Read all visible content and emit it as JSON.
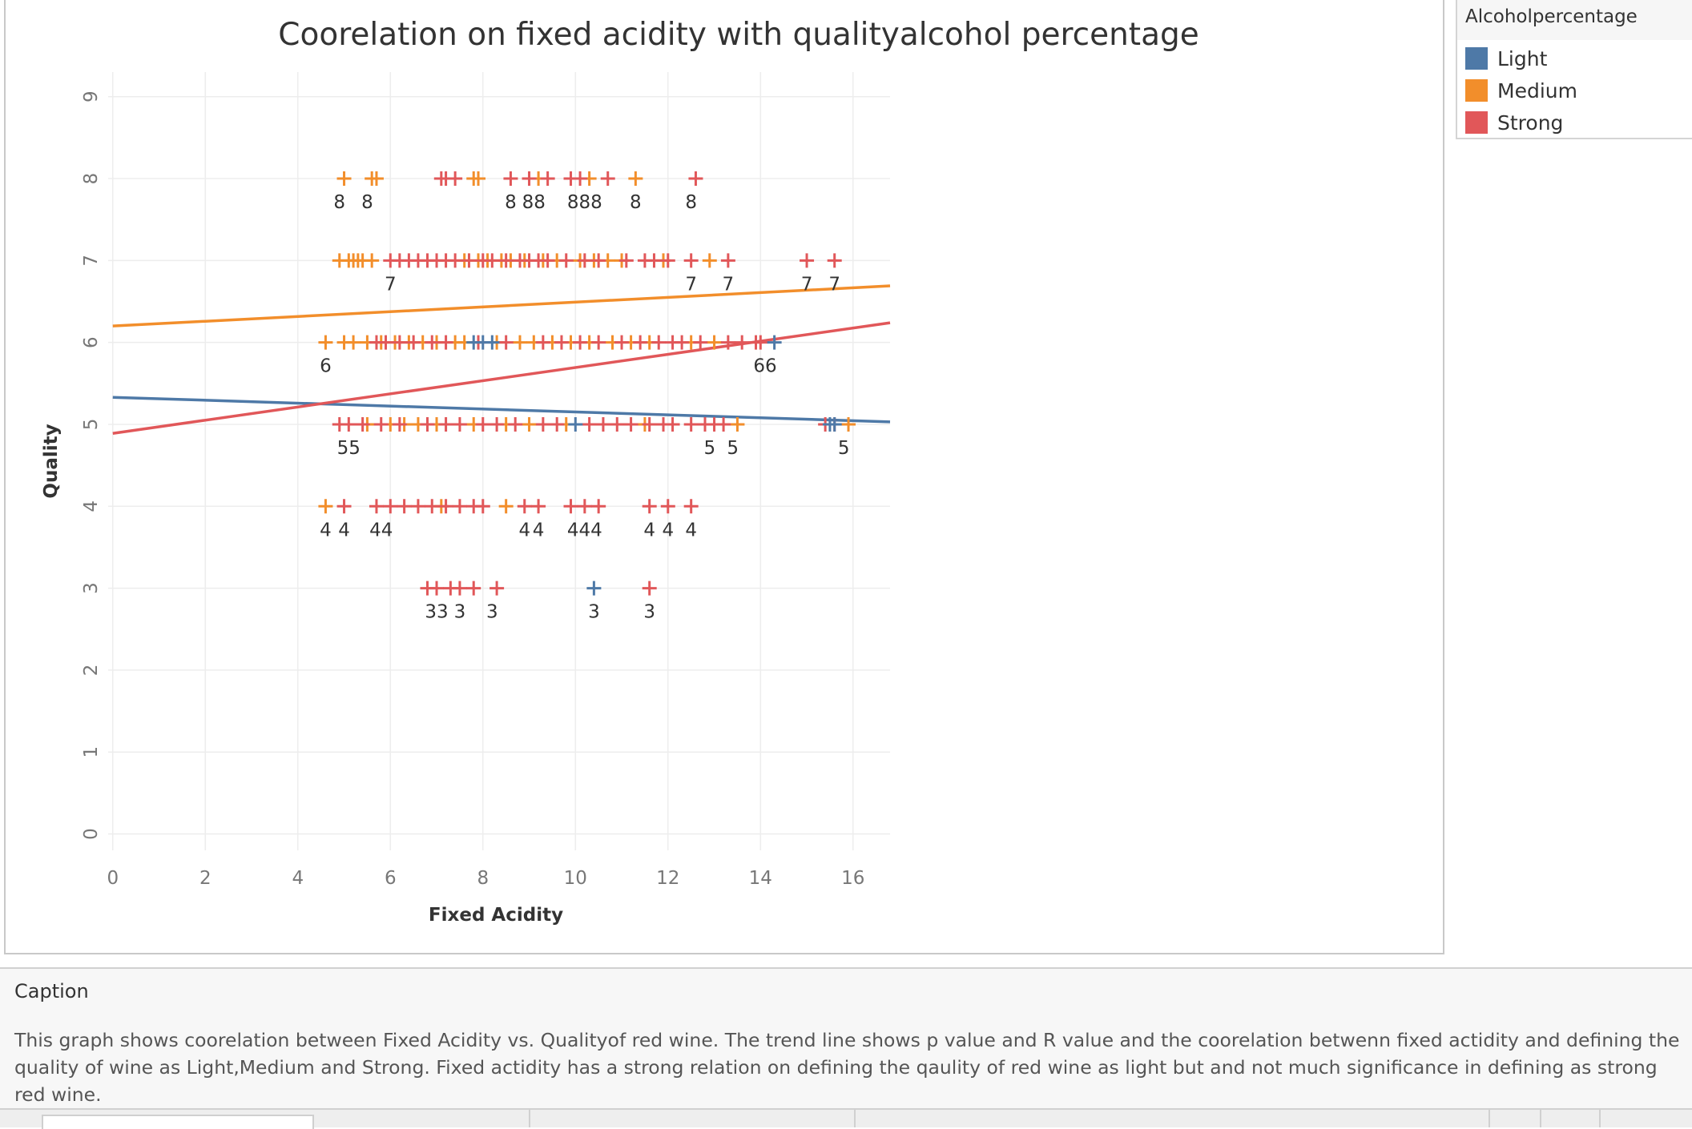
{
  "chart_data": {
    "type": "scatter",
    "title": "Coorelation on fixed acidity with qualityalcohol percentage",
    "xlabel": "Fixed Acidity",
    "ylabel": "Quality",
    "xlim": [
      -0.1,
      16.8
    ],
    "ylim": [
      -0.2,
      9.3
    ],
    "x_ticks": [
      0,
      2,
      4,
      6,
      8,
      10,
      12,
      14,
      16
    ],
    "y_ticks": [
      0,
      1,
      2,
      3,
      4,
      5,
      6,
      7,
      8,
      9
    ],
    "grid": true,
    "marker": "+",
    "legend": {
      "title": "Alcoholpercentage",
      "position": "right",
      "entries": [
        {
          "name": "Light",
          "color": "#4e79a7"
        },
        {
          "name": "Medium",
          "color": "#f28e2b"
        },
        {
          "name": "Strong",
          "color": "#e15759"
        }
      ]
    },
    "series": [
      {
        "name": "Light",
        "color": "#4e79a7",
        "points": [
          {
            "x": 7.8,
            "y": 6
          },
          {
            "x": 8.0,
            "y": 6
          },
          {
            "x": 8.2,
            "y": 6
          },
          {
            "x": 10.0,
            "y": 5
          },
          {
            "x": 10.4,
            "y": 3
          },
          {
            "x": 14.3,
            "y": 6
          },
          {
            "x": 15.5,
            "y": 5
          },
          {
            "x": 15.6,
            "y": 5
          }
        ],
        "trend": {
          "x0": 0,
          "y0": 5.33,
          "x1": 16.8,
          "y1": 5.03
        }
      },
      {
        "name": "Medium",
        "color": "#f28e2b",
        "points": [
          {
            "x": 5.0,
            "y": 8
          },
          {
            "x": 5.6,
            "y": 8
          },
          {
            "x": 5.7,
            "y": 8
          },
          {
            "x": 7.8,
            "y": 8
          },
          {
            "x": 7.9,
            "y": 8
          },
          {
            "x": 9.2,
            "y": 8
          },
          {
            "x": 10.3,
            "y": 8
          },
          {
            "x": 11.3,
            "y": 8
          },
          {
            "x": 4.9,
            "y": 7
          },
          {
            "x": 5.1,
            "y": 7
          },
          {
            "x": 5.2,
            "y": 7
          },
          {
            "x": 5.3,
            "y": 7
          },
          {
            "x": 5.4,
            "y": 7
          },
          {
            "x": 5.6,
            "y": 7
          },
          {
            "x": 7.6,
            "y": 7
          },
          {
            "x": 7.9,
            "y": 7
          },
          {
            "x": 8.1,
            "y": 7
          },
          {
            "x": 8.4,
            "y": 7
          },
          {
            "x": 8.6,
            "y": 7
          },
          {
            "x": 8.9,
            "y": 7
          },
          {
            "x": 9.3,
            "y": 7
          },
          {
            "x": 9.6,
            "y": 7
          },
          {
            "x": 10.1,
            "y": 7
          },
          {
            "x": 10.4,
            "y": 7
          },
          {
            "x": 10.7,
            "y": 7
          },
          {
            "x": 11.0,
            "y": 7
          },
          {
            "x": 11.9,
            "y": 7
          },
          {
            "x": 12.9,
            "y": 7
          },
          {
            "x": 4.6,
            "y": 6
          },
          {
            "x": 5.0,
            "y": 6
          },
          {
            "x": 5.2,
            "y": 6
          },
          {
            "x": 5.5,
            "y": 6
          },
          {
            "x": 5.8,
            "y": 6
          },
          {
            "x": 6.1,
            "y": 6
          },
          {
            "x": 6.4,
            "y": 6
          },
          {
            "x": 6.7,
            "y": 6
          },
          {
            "x": 7.0,
            "y": 6
          },
          {
            "x": 7.4,
            "y": 6
          },
          {
            "x": 7.6,
            "y": 6
          },
          {
            "x": 8.3,
            "y": 6
          },
          {
            "x": 8.8,
            "y": 6
          },
          {
            "x": 9.1,
            "y": 6
          },
          {
            "x": 9.5,
            "y": 6
          },
          {
            "x": 9.9,
            "y": 6
          },
          {
            "x": 10.3,
            "y": 6
          },
          {
            "x": 10.8,
            "y": 6
          },
          {
            "x": 11.2,
            "y": 6
          },
          {
            "x": 11.6,
            "y": 6
          },
          {
            "x": 12.5,
            "y": 6
          },
          {
            "x": 13.0,
            "y": 6
          },
          {
            "x": 5.5,
            "y": 5
          },
          {
            "x": 6.0,
            "y": 5
          },
          {
            "x": 6.3,
            "y": 5
          },
          {
            "x": 6.6,
            "y": 5
          },
          {
            "x": 7.0,
            "y": 5
          },
          {
            "x": 7.8,
            "y": 5
          },
          {
            "x": 8.5,
            "y": 5
          },
          {
            "x": 9.0,
            "y": 5
          },
          {
            "x": 9.8,
            "y": 5
          },
          {
            "x": 11.5,
            "y": 5
          },
          {
            "x": 13.5,
            "y": 5
          },
          {
            "x": 15.9,
            "y": 5
          },
          {
            "x": 4.6,
            "y": 4
          },
          {
            "x": 7.1,
            "y": 4
          },
          {
            "x": 8.5,
            "y": 4
          }
        ],
        "trend": {
          "x0": 0,
          "y0": 6.2,
          "x1": 16.8,
          "y1": 6.69
        }
      },
      {
        "name": "Strong",
        "color": "#e15759",
        "points": [
          {
            "x": 7.1,
            "y": 8
          },
          {
            "x": 7.2,
            "y": 8
          },
          {
            "x": 7.4,
            "y": 8
          },
          {
            "x": 8.6,
            "y": 8
          },
          {
            "x": 9.0,
            "y": 8
          },
          {
            "x": 9.4,
            "y": 8
          },
          {
            "x": 9.9,
            "y": 8
          },
          {
            "x": 10.1,
            "y": 8
          },
          {
            "x": 10.7,
            "y": 8
          },
          {
            "x": 12.6,
            "y": 8
          },
          {
            "x": 6.0,
            "y": 7
          },
          {
            "x": 6.2,
            "y": 7
          },
          {
            "x": 6.4,
            "y": 7
          },
          {
            "x": 6.6,
            "y": 7
          },
          {
            "x": 6.8,
            "y": 7
          },
          {
            "x": 7.0,
            "y": 7
          },
          {
            "x": 7.2,
            "y": 7
          },
          {
            "x": 7.4,
            "y": 7
          },
          {
            "x": 7.7,
            "y": 7
          },
          {
            "x": 8.0,
            "y": 7
          },
          {
            "x": 8.2,
            "y": 7
          },
          {
            "x": 8.5,
            "y": 7
          },
          {
            "x": 8.8,
            "y": 7
          },
          {
            "x": 9.0,
            "y": 7
          },
          {
            "x": 9.2,
            "y": 7
          },
          {
            "x": 9.4,
            "y": 7
          },
          {
            "x": 9.8,
            "y": 7
          },
          {
            "x": 10.2,
            "y": 7
          },
          {
            "x": 10.5,
            "y": 7
          },
          {
            "x": 11.1,
            "y": 7
          },
          {
            "x": 11.5,
            "y": 7
          },
          {
            "x": 11.7,
            "y": 7
          },
          {
            "x": 12.0,
            "y": 7
          },
          {
            "x": 12.5,
            "y": 7
          },
          {
            "x": 13.3,
            "y": 7
          },
          {
            "x": 15.0,
            "y": 7
          },
          {
            "x": 15.6,
            "y": 7
          },
          {
            "x": 5.7,
            "y": 6
          },
          {
            "x": 5.9,
            "y": 6
          },
          {
            "x": 6.2,
            "y": 6
          },
          {
            "x": 6.5,
            "y": 6
          },
          {
            "x": 6.9,
            "y": 6
          },
          {
            "x": 7.2,
            "y": 6
          },
          {
            "x": 7.9,
            "y": 6
          },
          {
            "x": 8.5,
            "y": 6
          },
          {
            "x": 9.3,
            "y": 6
          },
          {
            "x": 9.7,
            "y": 6
          },
          {
            "x": 10.1,
            "y": 6
          },
          {
            "x": 10.5,
            "y": 6
          },
          {
            "x": 11.0,
            "y": 6
          },
          {
            "x": 11.4,
            "y": 6
          },
          {
            "x": 11.8,
            "y": 6
          },
          {
            "x": 12.1,
            "y": 6
          },
          {
            "x": 12.3,
            "y": 6
          },
          {
            "x": 12.7,
            "y": 6
          },
          {
            "x": 13.3,
            "y": 6
          },
          {
            "x": 13.6,
            "y": 6
          },
          {
            "x": 13.9,
            "y": 6
          },
          {
            "x": 14.0,
            "y": 6
          },
          {
            "x": 4.9,
            "y": 5
          },
          {
            "x": 5.1,
            "y": 5
          },
          {
            "x": 5.4,
            "y": 5
          },
          {
            "x": 5.8,
            "y": 5
          },
          {
            "x": 6.2,
            "y": 5
          },
          {
            "x": 6.8,
            "y": 5
          },
          {
            "x": 7.2,
            "y": 5
          },
          {
            "x": 7.5,
            "y": 5
          },
          {
            "x": 8.0,
            "y": 5
          },
          {
            "x": 8.3,
            "y": 5
          },
          {
            "x": 8.7,
            "y": 5
          },
          {
            "x": 9.3,
            "y": 5
          },
          {
            "x": 9.6,
            "y": 5
          },
          {
            "x": 10.3,
            "y": 5
          },
          {
            "x": 10.6,
            "y": 5
          },
          {
            "x": 10.9,
            "y": 5
          },
          {
            "x": 11.2,
            "y": 5
          },
          {
            "x": 11.6,
            "y": 5
          },
          {
            "x": 11.9,
            "y": 5
          },
          {
            "x": 12.1,
            "y": 5
          },
          {
            "x": 12.5,
            "y": 5
          },
          {
            "x": 12.8,
            "y": 5
          },
          {
            "x": 13.0,
            "y": 5
          },
          {
            "x": 13.2,
            "y": 5
          },
          {
            "x": 15.4,
            "y": 5
          },
          {
            "x": 15.6,
            "y": 5
          },
          {
            "x": 5.0,
            "y": 4
          },
          {
            "x": 5.7,
            "y": 4
          },
          {
            "x": 6.0,
            "y": 4
          },
          {
            "x": 6.3,
            "y": 4
          },
          {
            "x": 6.6,
            "y": 4
          },
          {
            "x": 6.9,
            "y": 4
          },
          {
            "x": 7.2,
            "y": 4
          },
          {
            "x": 7.5,
            "y": 4
          },
          {
            "x": 7.8,
            "y": 4
          },
          {
            "x": 8.0,
            "y": 4
          },
          {
            "x": 8.9,
            "y": 4
          },
          {
            "x": 9.2,
            "y": 4
          },
          {
            "x": 9.9,
            "y": 4
          },
          {
            "x": 10.2,
            "y": 4
          },
          {
            "x": 10.5,
            "y": 4
          },
          {
            "x": 11.6,
            "y": 4
          },
          {
            "x": 12.0,
            "y": 4
          },
          {
            "x": 12.5,
            "y": 4
          },
          {
            "x": 6.8,
            "y": 3
          },
          {
            "x": 7.0,
            "y": 3
          },
          {
            "x": 7.3,
            "y": 3
          },
          {
            "x": 7.5,
            "y": 3
          },
          {
            "x": 7.8,
            "y": 3
          },
          {
            "x": 8.3,
            "y": 3
          },
          {
            "x": 11.6,
            "y": 3
          }
        ],
        "trend": {
          "x0": 0,
          "y0": 4.89,
          "x1": 16.8,
          "y1": 6.24
        }
      }
    ],
    "annotations": [
      {
        "x": 4.9,
        "y": 8,
        "text": "8"
      },
      {
        "x": 5.5,
        "y": 8,
        "text": "8"
      },
      {
        "x": 8.6,
        "y": 8,
        "text": "8"
      },
      {
        "x": 9.1,
        "y": 8,
        "text": "88"
      },
      {
        "x": 10.2,
        "y": 8,
        "text": "888"
      },
      {
        "x": 11.3,
        "y": 8,
        "text": "8"
      },
      {
        "x": 12.5,
        "y": 8,
        "text": "8"
      },
      {
        "x": 6.0,
        "y": 7,
        "text": "7"
      },
      {
        "x": 12.5,
        "y": 7,
        "text": "7"
      },
      {
        "x": 13.3,
        "y": 7,
        "text": "7"
      },
      {
        "x": 15.0,
        "y": 7,
        "text": "7"
      },
      {
        "x": 15.6,
        "y": 7,
        "text": "7"
      },
      {
        "x": 4.6,
        "y": 6,
        "text": "6"
      },
      {
        "x": 14.1,
        "y": 6,
        "text": "66"
      },
      {
        "x": 5.1,
        "y": 5,
        "text": "55"
      },
      {
        "x": 12.9,
        "y": 5,
        "text": "5"
      },
      {
        "x": 13.4,
        "y": 5,
        "text": "5"
      },
      {
        "x": 15.8,
        "y": 5,
        "text": "5"
      },
      {
        "x": 4.6,
        "y": 4,
        "text": "4"
      },
      {
        "x": 5.0,
        "y": 4,
        "text": "4"
      },
      {
        "x": 5.8,
        "y": 4,
        "text": "44"
      },
      {
        "x": 8.9,
        "y": 4,
        "text": "4"
      },
      {
        "x": 9.2,
        "y": 4,
        "text": "4"
      },
      {
        "x": 10.2,
        "y": 4,
        "text": "444"
      },
      {
        "x": 11.6,
        "y": 4,
        "text": "4"
      },
      {
        "x": 12.0,
        "y": 4,
        "text": "4"
      },
      {
        "x": 12.5,
        "y": 4,
        "text": "4"
      },
      {
        "x": 7.0,
        "y": 3,
        "text": "33"
      },
      {
        "x": 7.5,
        "y": 3,
        "text": "3"
      },
      {
        "x": 8.2,
        "y": 3,
        "text": "3"
      },
      {
        "x": 10.4,
        "y": 3,
        "text": "3"
      },
      {
        "x": 11.6,
        "y": 3,
        "text": "3"
      }
    ]
  },
  "legend": {
    "title": "Alcoholpercentage",
    "items": [
      {
        "label": "Light",
        "color": "#4e79a7"
      },
      {
        "label": "Medium",
        "color": "#f28e2b"
      },
      {
        "label": "Strong",
        "color": "#e15759"
      }
    ]
  },
  "caption": {
    "title": "Caption",
    "text": "This graph shows coorelation between Fixed Acidity vs. Qualityof red wine. The trend line shows p value and R value and the coorelation betwenn fixed actidity and defining the quality of wine as Light,Medium and Strong. Fixed actidity has a strong relation on defining the qaulity of red wine as light but and not much significance in defining as strong red wine."
  }
}
